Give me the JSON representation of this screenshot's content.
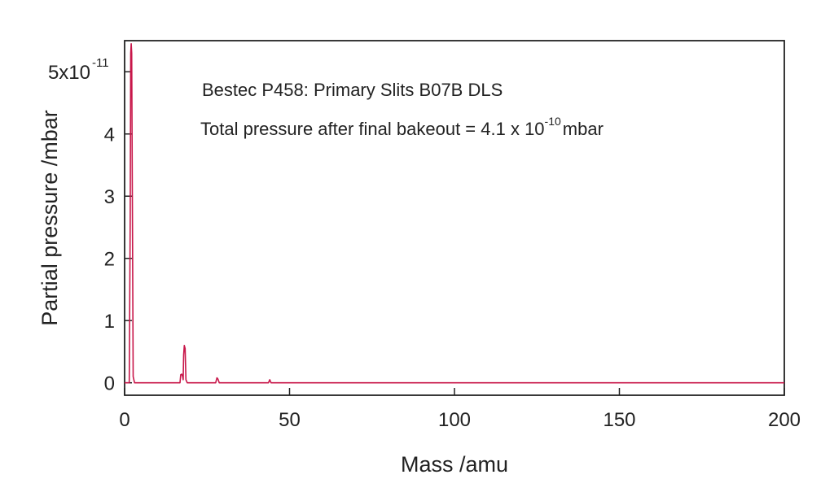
{
  "chart_data": {
    "type": "line",
    "title": "",
    "xlabel": "Mass /amu",
    "ylabel": "Partial pressure /mbar",
    "xlim": [
      0,
      200
    ],
    "ylim": [
      -0.2,
      5.5
    ],
    "x_ticks": [
      {
        "value": 0,
        "label": "0"
      },
      {
        "value": 50,
        "label": "50"
      },
      {
        "value": 100,
        "label": "100"
      },
      {
        "value": 150,
        "label": "150"
      },
      {
        "value": 200,
        "label": "200"
      }
    ],
    "y_ticks": [
      {
        "value": 0,
        "label": "0"
      },
      {
        "value": 1,
        "label": "1"
      },
      {
        "value": 2,
        "label": "2"
      },
      {
        "value": 3,
        "label": "3"
      },
      {
        "value": 4,
        "label": "4"
      },
      {
        "value": 5,
        "label": "5x10",
        "exponent": "-11"
      }
    ],
    "grid": false,
    "line_color": "#c8174a",
    "annotations": [
      {
        "text": "Bestec P458: Primary Slits B07B DLS"
      },
      {
        "text": "Total pressure after final bakeout = 4.1 x 10",
        "exponent": "-10",
        "suffix": "mbar"
      }
    ],
    "series": [
      {
        "x": [
          0,
          1.4,
          1.7,
          1.85,
          2.0,
          2.15,
          2.35,
          2.6,
          3.0,
          16.8,
          17.0,
          17.3,
          17.6,
          17.75,
          17.9,
          18.1,
          18.35,
          18.6,
          19.0,
          27.6,
          28.0,
          28.3,
          28.7,
          43.6,
          44.0,
          44.4,
          200
        ],
        "y": [
          0,
          0,
          2.7,
          5.3,
          5.45,
          5.3,
          3.0,
          0.1,
          0,
          0,
          0.13,
          0.14,
          0.1,
          0.05,
          0.45,
          0.6,
          0.55,
          0.05,
          0,
          0,
          0.08,
          0.06,
          0,
          0,
          0.05,
          0,
          0
        ]
      }
    ]
  }
}
